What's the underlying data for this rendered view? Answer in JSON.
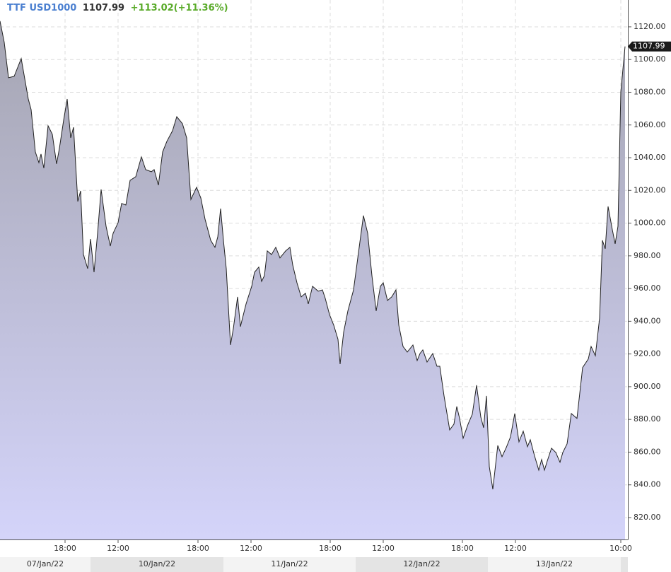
{
  "chart_data": {
    "type": "area",
    "header": {
      "symbol": "TTF USD1000",
      "price": "1107.99",
      "change": "+113.02(+11.36%)"
    },
    "x": [
      0,
      6,
      12,
      20,
      30,
      40,
      44,
      50,
      55,
      58,
      62,
      68,
      74,
      80,
      84,
      90,
      95,
      100,
      104,
      110,
      114,
      118,
      124,
      128,
      133,
      138,
      143,
      150,
      156,
      160,
      167,
      172,
      178,
      184,
      192,
      200,
      206,
      214,
      218,
      224,
      230,
      236,
      244,
      250,
      258,
      264,
      270,
      278,
      284,
      290,
      298,
      304,
      308,
      312,
      316,
      320,
      326,
      330,
      336,
      340,
      348,
      356,
      360,
      366,
      370,
      374,
      378,
      384,
      390,
      396,
      404,
      410,
      414,
      420,
      426,
      432,
      436,
      442,
      450,
      456,
      460,
      466,
      472,
      478,
      481,
      486,
      492,
      500,
      506,
      514,
      520,
      526,
      532,
      538,
      542,
      548,
      554,
      560,
      564,
      570,
      576,
      584,
      590,
      594,
      598,
      604,
      612,
      618,
      622,
      628,
      636,
      642,
      646,
      650,
      655,
      662,
      668,
      674,
      680,
      684,
      688,
      692,
      697,
      704,
      710,
      716,
      722,
      728,
      734,
      740,
      746,
      750,
      756,
      762,
      766,
      770,
      774,
      780,
      786,
      792,
      796,
      802,
      808,
      816,
      824,
      832,
      836,
      842,
      848,
      852,
      856,
      860,
      866,
      870,
      874,
      878,
      884
    ],
    "values": [
      1123.5,
      1110.5,
      1088.9,
      1089.7,
      1100.6,
      1075.9,
      1069.4,
      1043.5,
      1037.0,
      1042.2,
      1033.6,
      1059.5,
      1054.3,
      1036.2,
      1045.7,
      1062.9,
      1075.9,
      1052.1,
      1058.6,
      1013.2,
      1019.7,
      980.8,
      972.2,
      990.3,
      970.0,
      993.8,
      1020.6,
      998.1,
      986.0,
      993.8,
      1000.3,
      1012.0,
      1011.1,
      1026.2,
      1028.4,
      1040.5,
      1032.7,
      1031.4,
      1032.7,
      1023.2,
      1043.5,
      1050.0,
      1056.5,
      1065.1,
      1060.8,
      1052.1,
      1014.5,
      1021.9,
      1015.4,
      1002.4,
      989.5,
      985.2,
      991.6,
      1008.9,
      989.5,
      972.2,
      925.5,
      935.5,
      954.9,
      936.7,
      950.6,
      961.4,
      970.0,
      973.1,
      964.4,
      967.9,
      983.0,
      980.8,
      985.2,
      978.7,
      983.0,
      985.2,
      974.4,
      963.5,
      954.9,
      957.1,
      950.6,
      961.4,
      958.4,
      959.2,
      954.0,
      944.1,
      937.6,
      929.0,
      913.8,
      933.3,
      946.3,
      959.2,
      978.7,
      1004.6,
      993.8,
      967.9,
      946.3,
      961.4,
      963.5,
      952.7,
      954.9,
      959.2,
      937.6,
      924.6,
      921.2,
      925.5,
      916.0,
      920.3,
      922.5,
      915.1,
      920.3,
      912.5,
      912.5,
      894.4,
      873.6,
      877.1,
      887.9,
      880.6,
      868.5,
      877.1,
      883.2,
      900.9,
      881.4,
      874.9,
      894.4,
      851.2,
      837.3,
      864.1,
      857.2,
      862.8,
      869.3,
      883.6,
      866.3,
      872.8,
      863.3,
      867.6,
      857.7,
      849.0,
      855.5,
      849.0,
      854.6,
      862.4,
      859.8,
      853.8,
      859.8,
      865.0,
      883.6,
      880.6,
      911.7,
      916.9,
      924.6,
      919.0,
      941.9,
      989.5,
      984.3,
      1010.2,
      996.0,
      987.3,
      998.1,
      1080.2,
      1107.99
    ],
    "color": "#222222",
    "xlim": [
      0,
      888
    ],
    "xticks": [
      {
        "value": 92,
        "label": "18:00"
      },
      {
        "value": 167,
        "label": "12:00"
      },
      {
        "value": 280,
        "label": "18:00"
      },
      {
        "value": 355,
        "label": "12:00"
      },
      {
        "value": 467,
        "label": "18:00"
      },
      {
        "value": 542,
        "label": "12:00"
      },
      {
        "value": 654,
        "label": "18:00"
      },
      {
        "value": 729,
        "label": "12:00"
      },
      {
        "value": 878,
        "label": "10:00"
      }
    ],
    "date_bands": [
      {
        "label": "07/Jan/22",
        "from": 0,
        "to": 128
      },
      {
        "label": "10/Jan/22",
        "from": 128,
        "to": 316
      },
      {
        "label": "11/Jan/22",
        "from": 316,
        "to": 503
      },
      {
        "label": "12/Jan/22",
        "from": 503,
        "to": 690
      },
      {
        "label": "13/Jan/22",
        "from": 690,
        "to": 878
      }
    ],
    "ylim": [
      806.6,
      1136.4
    ],
    "yticks": [
      {
        "value": 820,
        "label": "820.00"
      },
      {
        "value": 840,
        "label": "840.00"
      },
      {
        "value": 860,
        "label": "860.00"
      },
      {
        "value": 880,
        "label": "880.00"
      },
      {
        "value": 900,
        "label": "900.00"
      },
      {
        "value": 920,
        "label": "920.00"
      },
      {
        "value": 940,
        "label": "940.00"
      },
      {
        "value": 960,
        "label": "960.00"
      },
      {
        "value": 980,
        "label": "980.00"
      },
      {
        "value": 1000,
        "label": "1000.00"
      },
      {
        "value": 1020,
        "label": "1020.00"
      },
      {
        "value": 1040,
        "label": "1040.00"
      },
      {
        "value": 1060,
        "label": "1060.00"
      },
      {
        "value": 1080,
        "label": "1080.00"
      },
      {
        "value": 1100,
        "label": "1100.00"
      },
      {
        "value": 1120,
        "label": "1120.00"
      }
    ],
    "grid": true
  }
}
